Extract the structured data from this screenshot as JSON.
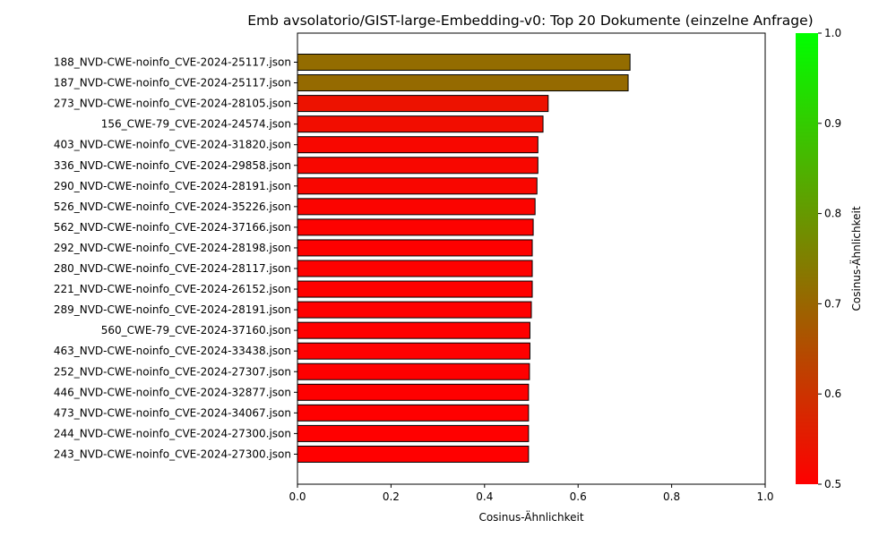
{
  "chart_data": {
    "type": "bar",
    "orientation": "horizontal",
    "title": "Emb avsolatorio/GIST-large-Embedding-v0: Top 20 Dokumente (einzelne Anfrage)",
    "xlabel": "Cosinus-Ähnlichkeit",
    "ylabel": "",
    "xlim": [
      0.0,
      1.0
    ],
    "xticks": [
      "0.0",
      "0.2",
      "0.4",
      "0.6",
      "0.8",
      "1.0"
    ],
    "grid": false,
    "categories": [
      "188_NVD-CWE-noinfo_CVE-2024-25117.json",
      "187_NVD-CWE-noinfo_CVE-2024-25117.json",
      "273_NVD-CWE-noinfo_CVE-2024-28105.json",
      "156_CWE-79_CVE-2024-24574.json",
      "403_NVD-CWE-noinfo_CVE-2024-31820.json",
      "336_NVD-CWE-noinfo_CVE-2024-29858.json",
      "290_NVD-CWE-noinfo_CVE-2024-28191.json",
      "526_NVD-CWE-noinfo_CVE-2024-35226.json",
      "562_NVD-CWE-noinfo_CVE-2024-37166.json",
      "292_NVD-CWE-noinfo_CVE-2024-28198.json",
      "280_NVD-CWE-noinfo_CVE-2024-28117.json",
      "221_NVD-CWE-noinfo_CVE-2024-26152.json",
      "289_NVD-CWE-noinfo_CVE-2024-28191.json",
      "560_CWE-79_CVE-2024-37160.json",
      "463_NVD-CWE-noinfo_CVE-2024-33438.json",
      "252_NVD-CWE-noinfo_CVE-2024-27307.json",
      "446_NVD-CWE-noinfo_CVE-2024-32877.json",
      "473_NVD-CWE-noinfo_CVE-2024-34067.json",
      "244_NVD-CWE-noinfo_CVE-2024-27300.json",
      "243_NVD-CWE-noinfo_CVE-2024-27300.json"
    ],
    "values": [
      0.711,
      0.707,
      0.536,
      0.525,
      0.514,
      0.514,
      0.512,
      0.508,
      0.504,
      0.502,
      0.502,
      0.502,
      0.5,
      0.497,
      0.497,
      0.496,
      0.494,
      0.494,
      0.494,
      0.494
    ],
    "colorbar": {
      "label": "Cosinus-Ähnlichkeit",
      "range": [
        0.5,
        1.0
      ],
      "ticks": [
        "0.5",
        "0.6",
        "0.7",
        "0.8",
        "0.9",
        "1.0"
      ],
      "low_color": "#ff0000",
      "high_color": "#00ff00",
      "bar_edge_color": "#000000"
    }
  }
}
